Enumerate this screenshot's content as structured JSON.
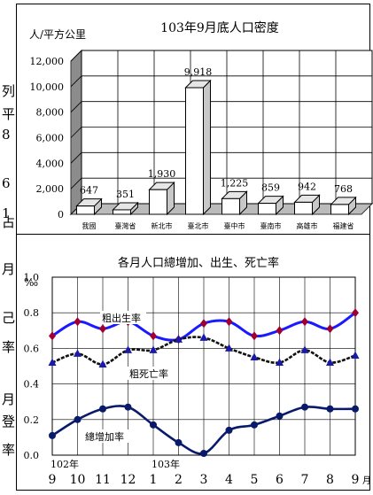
{
  "left_margin_glyphs": [
    "列",
    "平",
    "8",
    "6",
    "1",
    "占",
    "月",
    "己",
    "率",
    "月",
    "登",
    "率"
  ],
  "chart_data": [
    {
      "type": "bar",
      "title": "103年9月底人口密度",
      "ylabel": "人/平方公里",
      "ylim": [
        0,
        12000
      ],
      "yticks": [
        "0",
        "2,000",
        "4,000",
        "6,000",
        "8,000",
        "10,000",
        "12,000"
      ],
      "grid": true,
      "categories": [
        "我國",
        "臺灣省",
        "新北市",
        "臺北市",
        "臺中市",
        "臺南市",
        "高雄市",
        "福建省"
      ],
      "values": [
        647,
        351,
        1930,
        9918,
        1225,
        859,
        942,
        768
      ],
      "value_labels": [
        "647",
        "351",
        "1,930",
        "9,918",
        "1,225",
        "859",
        "942",
        "768"
      ],
      "bar_color": "#ffffff",
      "wall_color": "#8c8c8c"
    },
    {
      "type": "line",
      "title": "各月人口總增加、出生、死亡率",
      "ylabel": "‰",
      "xlabel": "月",
      "ylim": [
        0,
        1.0
      ],
      "yticks": [
        "0.0",
        "0.2",
        "0.4",
        "0.6",
        "0.8",
        "1.0"
      ],
      "grid": true,
      "x": [
        "9",
        "10",
        "11",
        "12",
        "1",
        "2",
        "3",
        "4",
        "5",
        "6",
        "7",
        "8",
        "9"
      ],
      "year_labels": [
        {
          "text": "102年",
          "at": "9"
        },
        {
          "text": "103年",
          "at": "1"
        }
      ],
      "series": [
        {
          "name": "粗出生率",
          "values": [
            0.67,
            0.75,
            0.71,
            0.75,
            0.67,
            0.65,
            0.74,
            0.75,
            0.67,
            0.7,
            0.75,
            0.71,
            0.8
          ],
          "color": "#1a1aff",
          "marker": "diamond",
          "marker_color": "#a00030"
        },
        {
          "name": "粗死亡率",
          "values": [
            0.52,
            0.57,
            0.51,
            0.59,
            0.59,
            0.65,
            0.66,
            0.6,
            0.55,
            0.52,
            0.59,
            0.52,
            0.56
          ],
          "color": "#111111",
          "marker": "triangle",
          "marker_color": "#1a1aaa"
        },
        {
          "name": "總增加率",
          "values": [
            0.11,
            0.2,
            0.26,
            0.27,
            0.17,
            0.07,
            0.01,
            0.14,
            0.17,
            0.22,
            0.27,
            0.26,
            0.26
          ],
          "color": "#0a1a6a",
          "marker": "circle",
          "marker_color": "#0a1a6a"
        }
      ]
    }
  ]
}
